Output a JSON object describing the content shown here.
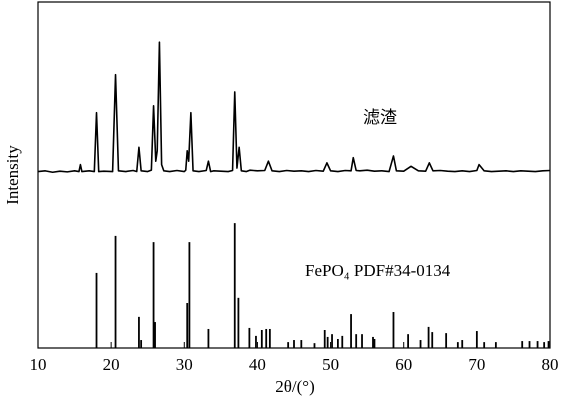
{
  "chart_data": {
    "type": "line",
    "xlabel": "2θ/(°)",
    "ylabel": "Intensity",
    "xlim": [
      10,
      80
    ],
    "xticks": [
      10,
      20,
      30,
      40,
      50,
      60,
      70,
      80
    ],
    "ylim": [
      0,
      100
    ],
    "series": [
      {
        "name": "滤渣",
        "type": "line",
        "color": "#000000",
        "x": [
          10,
          11,
          12,
          13,
          14,
          15,
          15.6,
          15.8,
          16,
          17,
          17.7,
          18.0,
          18.3,
          19,
          20.2,
          20.6,
          21,
          22,
          23,
          23.5,
          23.8,
          24.1,
          25,
          25.5,
          25.8,
          26.1,
          26.3,
          26.6,
          26.9,
          27.2,
          28,
          29,
          30,
          30.2,
          30.4,
          30.6,
          30.9,
          31.2,
          32,
          33,
          33.3,
          33.6,
          34,
          35,
          36,
          36.6,
          36.9,
          37.2,
          37.5,
          37.8,
          38.5,
          39,
          40,
          41,
          41.5,
          42,
          43,
          44,
          45,
          46,
          47,
          48,
          49,
          49.5,
          50,
          51,
          52,
          52.8,
          53.1,
          53.5,
          54,
          55,
          56,
          57,
          58,
          58.6,
          59,
          60,
          61,
          62,
          63,
          63.5,
          64,
          65,
          66,
          67,
          68,
          69,
          70,
          70.3,
          71,
          72,
          73,
          74,
          75,
          76,
          77,
          78,
          79,
          80
        ],
        "values": [
          51,
          51.2,
          50.8,
          51.1,
          50.9,
          51.2,
          51,
          53,
          51,
          51.2,
          51,
          68,
          51,
          51.1,
          51,
          79,
          51.2,
          51,
          51.3,
          51,
          58,
          51.2,
          51,
          51.4,
          70,
          54,
          57,
          88.4,
          53,
          51.2,
          51,
          51.3,
          51,
          51.4,
          57,
          54,
          68,
          51.2,
          51,
          51.3,
          54,
          51,
          51.2,
          51.1,
          51,
          51.3,
          74,
          52,
          58,
          51.2,
          51,
          51.4,
          51.2,
          51.3,
          54,
          51.2,
          51,
          51.3,
          51.1,
          51.2,
          51,
          51.3,
          51.1,
          53.5,
          51.2,
          51,
          51.3,
          51.2,
          55,
          51.3,
          51.2,
          51.4,
          51.1,
          51.2,
          51,
          55.5,
          51.2,
          51.1,
          52.5,
          51.2,
          51.1,
          53.5,
          51.2,
          51.3,
          51.1,
          51,
          51.2,
          51,
          51.3,
          53,
          51.2,
          51,
          51.1,
          51.2,
          51,
          51.2,
          51.1,
          51,
          51.2,
          51.3
        ]
      },
      {
        "name": "FePO₄ PDF#34-0134",
        "type": "stick",
        "color": "#000000",
        "x": [
          18.0,
          20.6,
          23.8,
          24.1,
          25.8,
          26.0,
          30.4,
          30.7,
          33.3,
          36.9,
          37.4,
          38.9,
          39.8,
          40.6,
          41.2,
          41.7,
          44.2,
          45.0,
          46.0,
          47.8,
          49.2,
          49.6,
          50.2,
          51.0,
          51.6,
          52.8,
          53.5,
          54.3,
          55.8,
          56.0,
          58.6,
          60.6,
          62.3,
          63.4,
          63.9,
          65.8,
          67.4,
          68.0,
          70.0,
          71.0,
          72.6,
          76.2,
          77.2,
          78.3,
          79.2,
          79.8
        ],
        "values": [
          21.7,
          32.4,
          9.0,
          2.3,
          30.6,
          7.5,
          13.0,
          30.6,
          5.5,
          36.1,
          14.5,
          5.8,
          3.5,
          5.2,
          5.5,
          5.5,
          1.7,
          2.3,
          2.3,
          1.4,
          5.2,
          3.2,
          4.0,
          2.6,
          3.5,
          9.8,
          4.0,
          4.0,
          3.2,
          2.6,
          10.4,
          4.0,
          2.3,
          6.1,
          4.6,
          4.3,
          1.7,
          2.3,
          4.9,
          1.7,
          1.7,
          2.0,
          2.0,
          2.0,
          1.7,
          2.0
        ]
      }
    ]
  }
}
